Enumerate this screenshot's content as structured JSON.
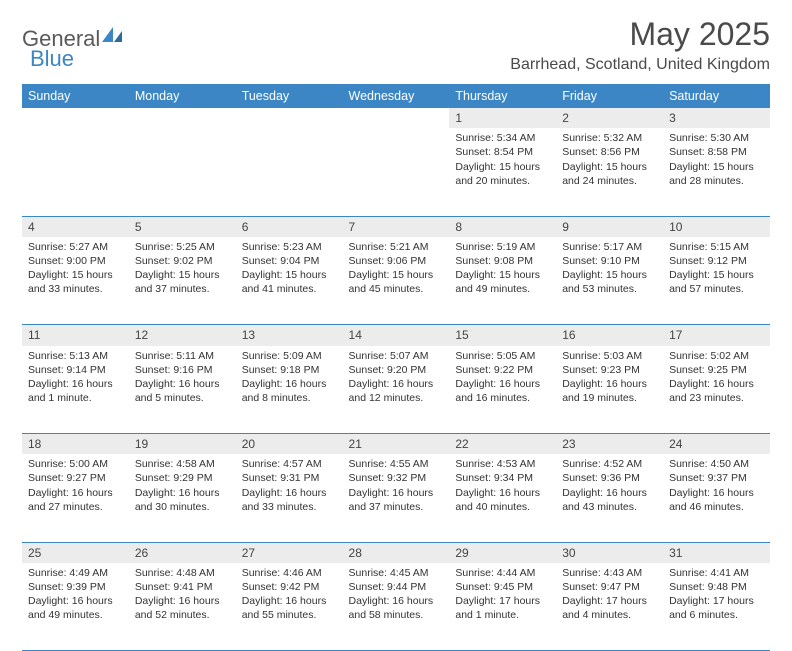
{
  "logo": {
    "part1": "General",
    "part2": "Blue"
  },
  "title": "May 2025",
  "location": "Barrhead, Scotland, United Kingdom",
  "colors": {
    "header_bg": "#3d86c6",
    "header_text": "#ffffff",
    "daynum_bg": "#ececec",
    "border": "#3d86c6",
    "text": "#333333",
    "title_text": "#4a4a4a"
  },
  "fonts": {
    "title_size": 32,
    "location_size": 16,
    "th_size": 12.5,
    "cell_size": 10.5,
    "daynum_size": 12
  },
  "weekdays": [
    "Sunday",
    "Monday",
    "Tuesday",
    "Wednesday",
    "Thursday",
    "Friday",
    "Saturday"
  ],
  "weeks": [
    [
      null,
      null,
      null,
      null,
      {
        "n": "1",
        "sunrise": "5:34 AM",
        "sunset": "8:54 PM",
        "daylight": "15 hours and 20 minutes."
      },
      {
        "n": "2",
        "sunrise": "5:32 AM",
        "sunset": "8:56 PM",
        "daylight": "15 hours and 24 minutes."
      },
      {
        "n": "3",
        "sunrise": "5:30 AM",
        "sunset": "8:58 PM",
        "daylight": "15 hours and 28 minutes."
      }
    ],
    [
      {
        "n": "4",
        "sunrise": "5:27 AM",
        "sunset": "9:00 PM",
        "daylight": "15 hours and 33 minutes."
      },
      {
        "n": "5",
        "sunrise": "5:25 AM",
        "sunset": "9:02 PM",
        "daylight": "15 hours and 37 minutes."
      },
      {
        "n": "6",
        "sunrise": "5:23 AM",
        "sunset": "9:04 PM",
        "daylight": "15 hours and 41 minutes."
      },
      {
        "n": "7",
        "sunrise": "5:21 AM",
        "sunset": "9:06 PM",
        "daylight": "15 hours and 45 minutes."
      },
      {
        "n": "8",
        "sunrise": "5:19 AM",
        "sunset": "9:08 PM",
        "daylight": "15 hours and 49 minutes."
      },
      {
        "n": "9",
        "sunrise": "5:17 AM",
        "sunset": "9:10 PM",
        "daylight": "15 hours and 53 minutes."
      },
      {
        "n": "10",
        "sunrise": "5:15 AM",
        "sunset": "9:12 PM",
        "daylight": "15 hours and 57 minutes."
      }
    ],
    [
      {
        "n": "11",
        "sunrise": "5:13 AM",
        "sunset": "9:14 PM",
        "daylight": "16 hours and 1 minute."
      },
      {
        "n": "12",
        "sunrise": "5:11 AM",
        "sunset": "9:16 PM",
        "daylight": "16 hours and 5 minutes."
      },
      {
        "n": "13",
        "sunrise": "5:09 AM",
        "sunset": "9:18 PM",
        "daylight": "16 hours and 8 minutes."
      },
      {
        "n": "14",
        "sunrise": "5:07 AM",
        "sunset": "9:20 PM",
        "daylight": "16 hours and 12 minutes."
      },
      {
        "n": "15",
        "sunrise": "5:05 AM",
        "sunset": "9:22 PM",
        "daylight": "16 hours and 16 minutes."
      },
      {
        "n": "16",
        "sunrise": "5:03 AM",
        "sunset": "9:23 PM",
        "daylight": "16 hours and 19 minutes."
      },
      {
        "n": "17",
        "sunrise": "5:02 AM",
        "sunset": "9:25 PM",
        "daylight": "16 hours and 23 minutes."
      }
    ],
    [
      {
        "n": "18",
        "sunrise": "5:00 AM",
        "sunset": "9:27 PM",
        "daylight": "16 hours and 27 minutes."
      },
      {
        "n": "19",
        "sunrise": "4:58 AM",
        "sunset": "9:29 PM",
        "daylight": "16 hours and 30 minutes."
      },
      {
        "n": "20",
        "sunrise": "4:57 AM",
        "sunset": "9:31 PM",
        "daylight": "16 hours and 33 minutes."
      },
      {
        "n": "21",
        "sunrise": "4:55 AM",
        "sunset": "9:32 PM",
        "daylight": "16 hours and 37 minutes."
      },
      {
        "n": "22",
        "sunrise": "4:53 AM",
        "sunset": "9:34 PM",
        "daylight": "16 hours and 40 minutes."
      },
      {
        "n": "23",
        "sunrise": "4:52 AM",
        "sunset": "9:36 PM",
        "daylight": "16 hours and 43 minutes."
      },
      {
        "n": "24",
        "sunrise": "4:50 AM",
        "sunset": "9:37 PM",
        "daylight": "16 hours and 46 minutes."
      }
    ],
    [
      {
        "n": "25",
        "sunrise": "4:49 AM",
        "sunset": "9:39 PM",
        "daylight": "16 hours and 49 minutes."
      },
      {
        "n": "26",
        "sunrise": "4:48 AM",
        "sunset": "9:41 PM",
        "daylight": "16 hours and 52 minutes."
      },
      {
        "n": "27",
        "sunrise": "4:46 AM",
        "sunset": "9:42 PM",
        "daylight": "16 hours and 55 minutes."
      },
      {
        "n": "28",
        "sunrise": "4:45 AM",
        "sunset": "9:44 PM",
        "daylight": "16 hours and 58 minutes."
      },
      {
        "n": "29",
        "sunrise": "4:44 AM",
        "sunset": "9:45 PM",
        "daylight": "17 hours and 1 minute."
      },
      {
        "n": "30",
        "sunrise": "4:43 AM",
        "sunset": "9:47 PM",
        "daylight": "17 hours and 4 minutes."
      },
      {
        "n": "31",
        "sunrise": "4:41 AM",
        "sunset": "9:48 PM",
        "daylight": "17 hours and 6 minutes."
      }
    ]
  ],
  "labels": {
    "sunrise": "Sunrise:",
    "sunset": "Sunset:",
    "daylight": "Daylight:"
  }
}
